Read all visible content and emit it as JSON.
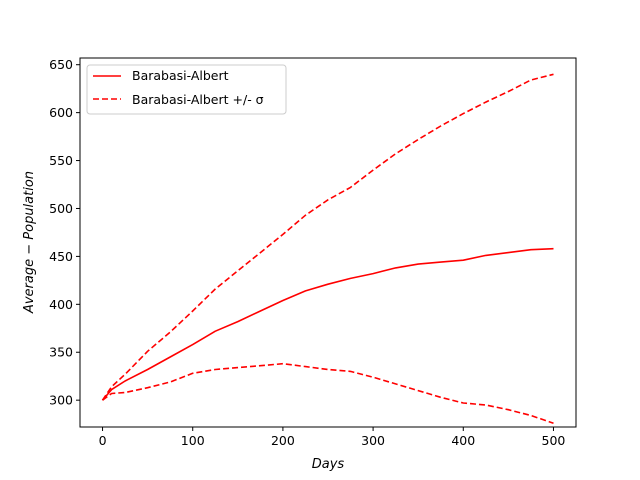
{
  "chart_data": {
    "type": "line",
    "title": "",
    "xlabel": "Days",
    "ylabel": "Average − Population",
    "xlim": [
      -25,
      525
    ],
    "ylim": [
      272,
      657
    ],
    "xticks": [
      0,
      100,
      200,
      300,
      400,
      500
    ],
    "xtick_labels": [
      "0",
      "100",
      "200",
      "300",
      "400",
      "500"
    ],
    "yticks": [
      300,
      350,
      400,
      450,
      500,
      550,
      600,
      650
    ],
    "ytick_labels": [
      "300",
      "350",
      "400",
      "450",
      "500",
      "550",
      "600",
      "650"
    ],
    "grid": false,
    "legend_position": "top-left",
    "series": [
      {
        "name": "Barabasi-Albert",
        "style": "solid",
        "color": "#ff0000",
        "x": [
          0,
          10,
          25,
          50,
          75,
          100,
          125,
          150,
          175,
          200,
          225,
          250,
          275,
          300,
          325,
          350,
          375,
          400,
          425,
          450,
          475,
          500
        ],
        "y": [
          300,
          311,
          320,
          332,
          345,
          358,
          372,
          382,
          393,
          404,
          414,
          421,
          427,
          432,
          438,
          442,
          444,
          446,
          451,
          454,
          457,
          458
        ]
      },
      {
        "name": "Barabasi-Albert +/- σ",
        "style": "dashed",
        "color": "#ff0000",
        "x": [
          0,
          10,
          25,
          50,
          75,
          100,
          125,
          150,
          175,
          200,
          225,
          250,
          275,
          300,
          325,
          350,
          375,
          400,
          425,
          450,
          475,
          500
        ],
        "y": [
          300,
          314,
          327,
          351,
          371,
          393,
          416,
          435,
          454,
          473,
          493,
          509,
          522,
          540,
          557,
          572,
          586,
          599,
          611,
          622,
          634,
          640
        ]
      },
      {
        "name": "",
        "style": "dashed",
        "color": "#ff0000",
        "x": [
          0,
          10,
          25,
          50,
          75,
          100,
          125,
          150,
          175,
          200,
          225,
          250,
          275,
          300,
          325,
          350,
          375,
          400,
          425,
          450,
          475,
          500
        ],
        "y": [
          300,
          307,
          308,
          313,
          319,
          328,
          332,
          334,
          336,
          338,
          335,
          332,
          330,
          324,
          317,
          310,
          303,
          297,
          295,
          290,
          284,
          276
        ]
      }
    ]
  }
}
